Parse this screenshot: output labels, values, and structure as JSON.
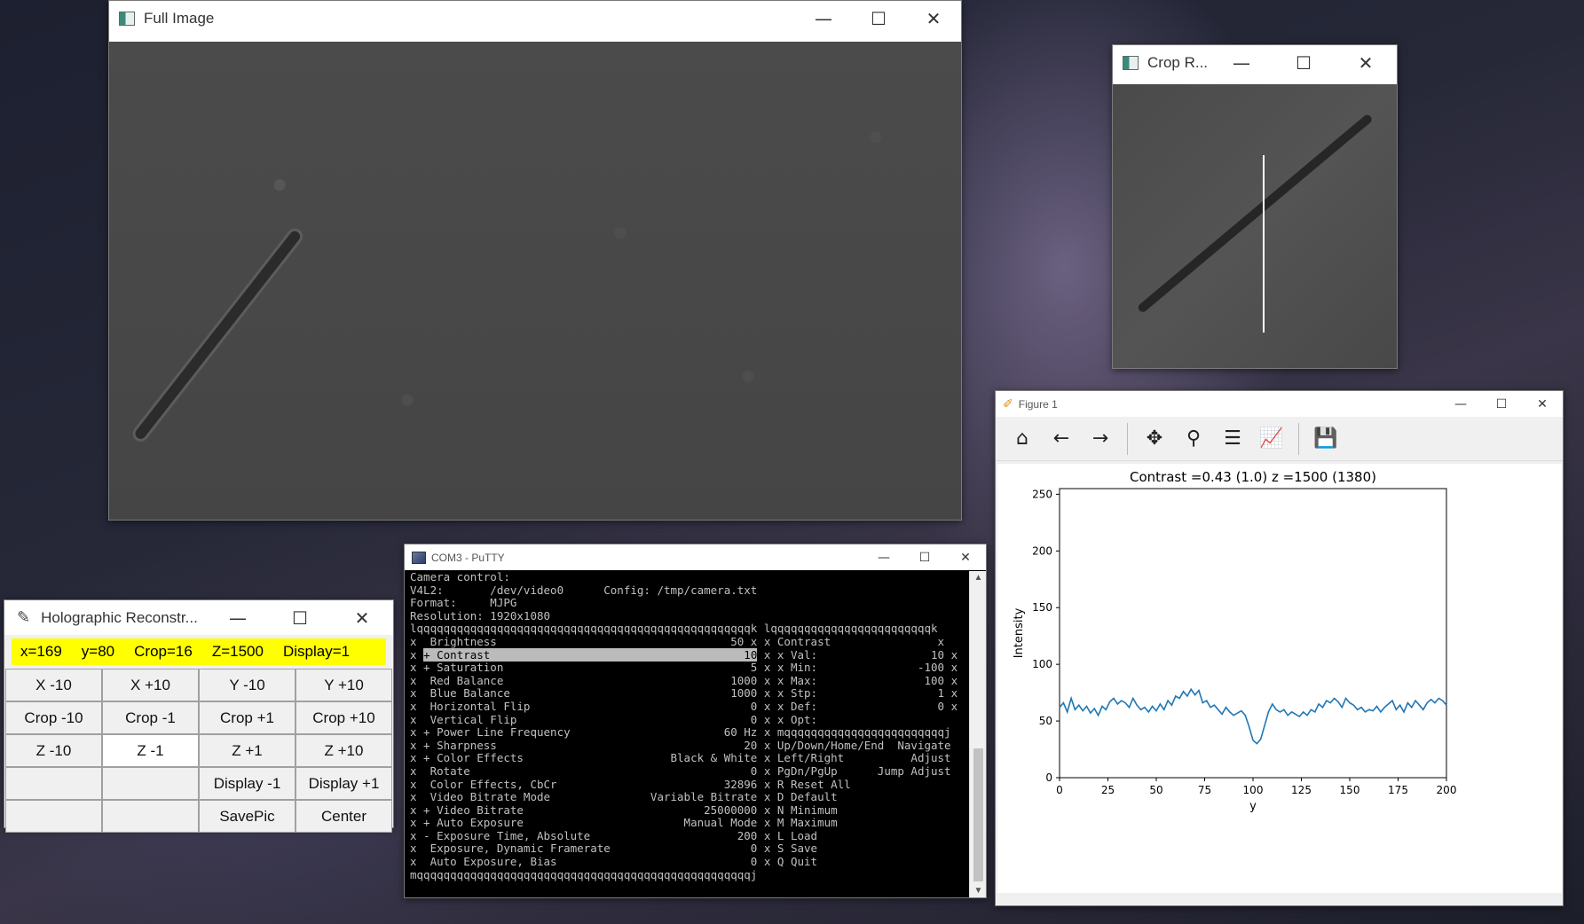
{
  "full_window": {
    "title": "Full Image",
    "minimize": "—",
    "maximize": "☐",
    "close": "✕"
  },
  "crop_window": {
    "title": "Crop R...",
    "minimize": "—",
    "maximize": "☐",
    "close": "✕"
  },
  "holo_window": {
    "title": "Holographic Reconstr...",
    "minimize": "—",
    "maximize": "☐",
    "close": "✕",
    "status": {
      "x": "x=169",
      "y": "y=80",
      "crop": "Crop=16",
      "z": "Z=1500",
      "display": "Display=1"
    },
    "buttons": [
      "X -10",
      "X +10",
      "Y -10",
      "Y +10",
      "Crop -10",
      "Crop -1",
      "Crop +1",
      "Crop +10",
      "Z -10",
      "Z -1",
      "Z +1",
      "Z +10",
      "",
      "",
      "Display -1",
      "Display +1",
      "",
      "",
      "SavePic",
      "Center"
    ]
  },
  "putty_window": {
    "title": "COM3 - PuTTY",
    "minimize": "—",
    "maximize": "☐",
    "close": "✕",
    "lines": [
      "Camera control:",
      "V4L2:       /dev/video0      Config: /tmp/camera.txt",
      "Format:     MJPG",
      "Resolution: 1920x1080",
      "lqqqqqqqqqqqqqqqqqqqqqqqqqqqqqqqqqqqqqqqqqqqqqqqqqqk lqqqqqqqqqqqqqqqqqqqqqqqqk",
      "x  Brightness                                   50 x x Contrast                x",
      "x + Contrast                                      10 x x Val:                 10 x",
      "x + Saturation                                     5 x x Min:               -100 x",
      "x  Red Balance                                  1000 x x Max:                100 x",
      "x  Blue Balance                                 1000 x x Stp:                  1 x",
      "x  Horizontal Flip                                 0 x x Def:                  0 x",
      "x  Vertical Flip                                   0 x x Opt:                  ",
      "x + Power Line Frequency                       60 Hz x mqqqqqqqqqqqqqqqqqqqqqqqqj",
      "x + Sharpness                                     20 x Up/Down/Home/End  Navigate",
      "x + Color Effects                      Black & White x Left/Right          Adjust",
      "x  Rotate                                          0 x PgDn/PgUp      Jump Adjust",
      "x  Color Effects, CbCr                         32896 x R Reset All",
      "x  Video Bitrate Mode               Variable Bitrate x D Default",
      "x + Video Bitrate                           25000000 x N Minimum",
      "x + Auto Exposure                        Manual Mode x M Maximum",
      "x - Exposure Time, Absolute                      200 x L Load",
      "x  Exposure, Dynamic Framerate                     0 x S Save",
      "x  Auto Exposure, Bias                             0 x Q Quit",
      "mqqqqqqqqqqqqqqqqqqqqqqqqqqqqqqqqqqqqqqqqqqqqqqqqqqj"
    ],
    "highlight_line": 6,
    "scroll_up": "▲",
    "scroll_down": "▼"
  },
  "figure_window": {
    "title": "Figure 1",
    "minimize": "—",
    "maximize": "☐",
    "close": "✕",
    "toolbar": {
      "home": "⌂",
      "back": "←",
      "forward": "→",
      "pan": "✥",
      "zoom": "⚲",
      "configure": "☰",
      "edit_axes": "📈",
      "save": "💾"
    }
  },
  "chart_data": {
    "type": "line",
    "title": "Contrast =0.43 (1.0)   z =1500 (1380)",
    "xlabel": "y",
    "ylabel": "Intensity",
    "xlim": [
      0,
      200
    ],
    "ylim": [
      0,
      255
    ],
    "xticks": [
      0,
      25,
      50,
      75,
      100,
      125,
      150,
      175,
      200
    ],
    "yticks": [
      0,
      50,
      100,
      150,
      200,
      250
    ],
    "line_color": "#1f77b4",
    "series": [
      {
        "x": [
          0,
          2,
          4,
          6,
          8,
          10,
          12,
          14,
          16,
          18,
          20,
          22,
          24,
          26,
          28,
          30,
          32,
          34,
          36,
          38,
          40,
          42,
          44,
          46,
          48,
          50,
          52,
          54,
          56,
          58,
          60,
          62,
          64,
          66,
          68,
          70,
          72,
          74,
          76,
          78,
          80,
          82,
          84,
          86,
          88,
          90,
          92,
          94,
          96,
          98,
          100,
          102,
          104,
          106,
          108,
          110,
          112,
          114,
          116,
          118,
          120,
          122,
          124,
          126,
          128,
          130,
          132,
          134,
          136,
          138,
          140,
          142,
          144,
          146,
          148,
          150,
          152,
          154,
          156,
          158,
          160,
          162,
          164,
          166,
          168,
          170,
          172,
          174,
          176,
          178,
          180,
          182,
          184,
          186,
          188,
          190,
          192,
          194,
          196,
          198,
          200
        ],
        "values": [
          62,
          66,
          58,
          70,
          60,
          64,
          59,
          63,
          57,
          61,
          55,
          63,
          60,
          67,
          70,
          65,
          68,
          66,
          62,
          70,
          64,
          60,
          62,
          58,
          63,
          59,
          65,
          60,
          68,
          64,
          72,
          70,
          76,
          72,
          78,
          73,
          77,
          66,
          68,
          62,
          64,
          60,
          56,
          62,
          58,
          55,
          57,
          59,
          55,
          45,
          33,
          30,
          34,
          46,
          58,
          65,
          60,
          58,
          60,
          55,
          58,
          56,
          54,
          58,
          55,
          60,
          58,
          65,
          62,
          68,
          66,
          70,
          67,
          62,
          70,
          66,
          64,
          60,
          62,
          58,
          60,
          59,
          63,
          58,
          62,
          65,
          68,
          60,
          64,
          58,
          66,
          62,
          68,
          64,
          60,
          66,
          69,
          66,
          70,
          68,
          64
        ]
      }
    ]
  }
}
